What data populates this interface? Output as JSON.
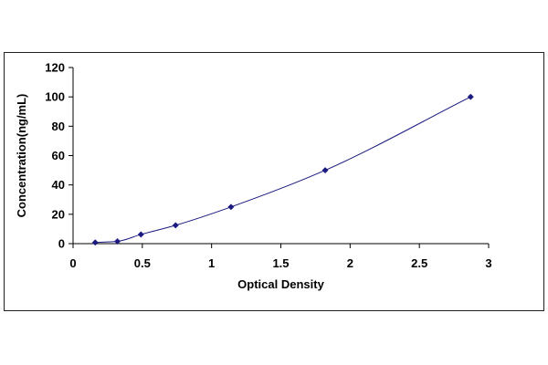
{
  "chart_data": {
    "type": "scatter",
    "title": "",
    "xlabel": "Optical Density",
    "ylabel": "Concentration(ng/mL)",
    "xlim": [
      0,
      3
    ],
    "ylim": [
      0,
      120
    ],
    "x_ticks": [
      "0",
      "0.5",
      "1",
      "1.5",
      "2",
      "2.5",
      "3"
    ],
    "y_ticks": [
      "0",
      "20",
      "40",
      "60",
      "80",
      "100",
      "120"
    ],
    "grid": false,
    "legend": "none",
    "series": [
      {
        "x": [
          0.16,
          0.32,
          0.49,
          0.74,
          1.14,
          1.82,
          2.87
        ],
        "y": [
          0.78,
          1.56,
          6.25,
          12.5,
          25,
          50,
          100
        ],
        "line": "smooth",
        "marker": "diamond"
      }
    ],
    "colors": {
      "marker": "#1a1a80",
      "line": "#1a1a80",
      "axis": "#000000"
    }
  }
}
